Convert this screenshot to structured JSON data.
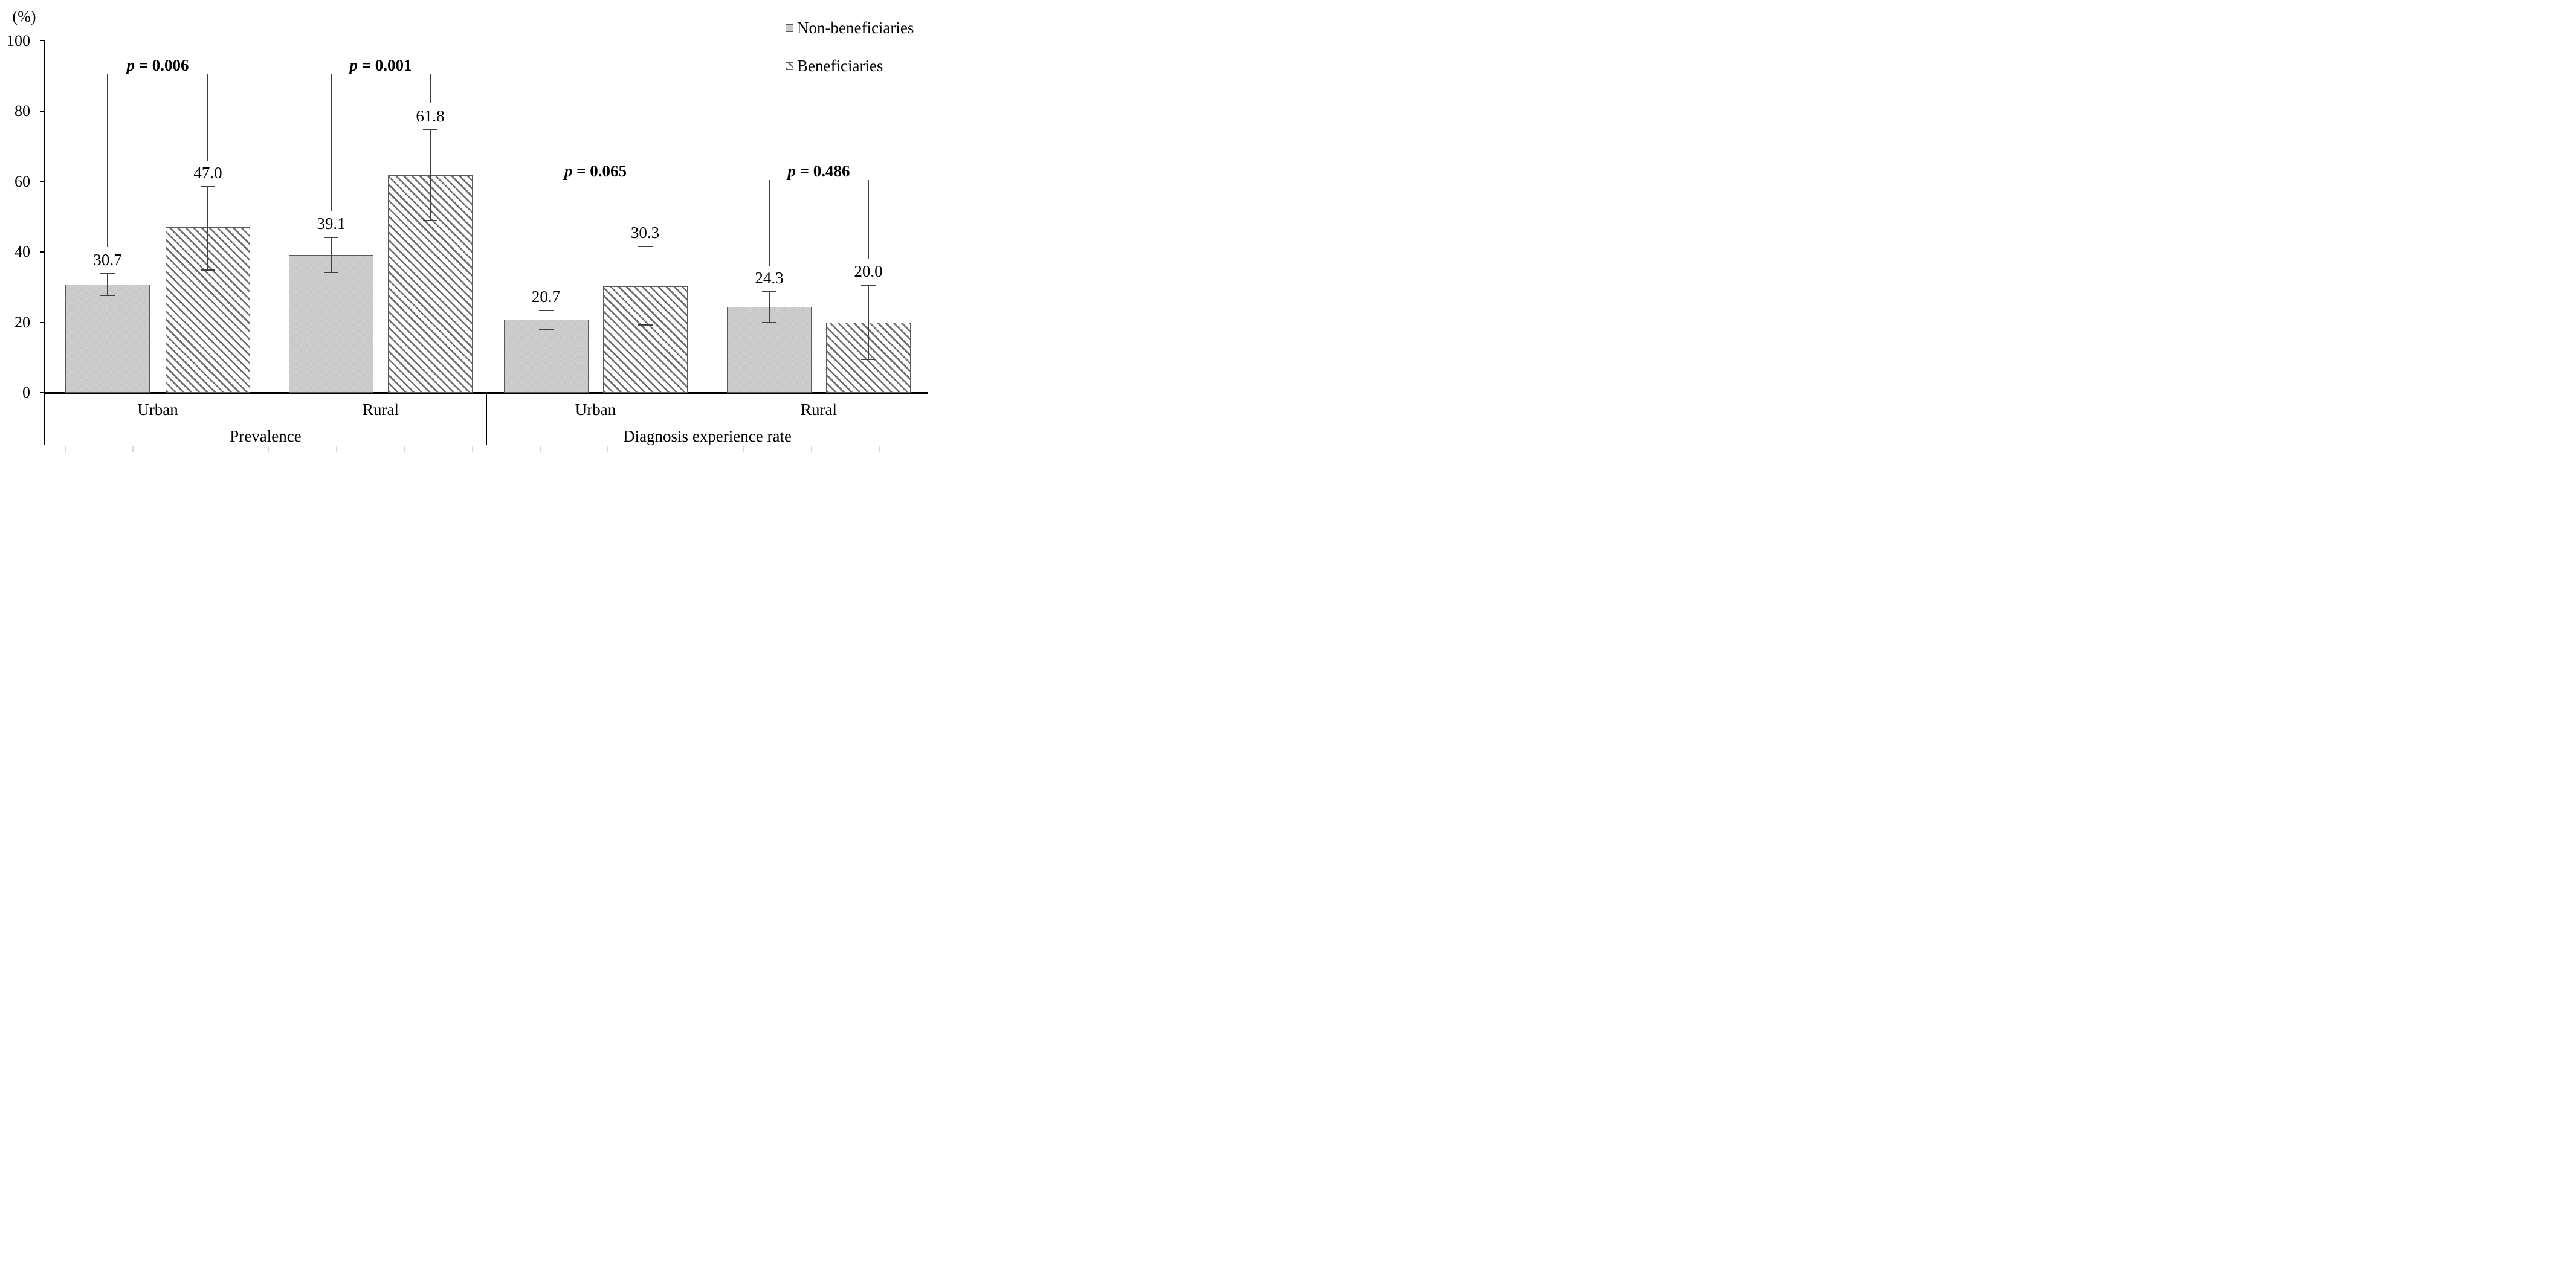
{
  "y_axis": {
    "unit_label": "(%)",
    "ticks": [
      0,
      20,
      40,
      60,
      80,
      100
    ]
  },
  "legend": {
    "items": [
      {
        "label": "Non-beneficiaries",
        "fill": "gray-textured",
        "marker": "gray-swatch-icon"
      },
      {
        "label": "Beneficiaries",
        "fill": "diagonal-hatch",
        "marker": "hatch-swatch-icon"
      }
    ]
  },
  "chart_data": {
    "type": "bar",
    "title": "",
    "xlabel": "",
    "ylabel": "(%)",
    "ylim": [
      0,
      100
    ],
    "yticks": [
      0,
      20,
      40,
      60,
      80,
      100
    ],
    "grid": false,
    "legend_position": "top-right",
    "series_names": [
      "Non-beneficiaries",
      "Beneficiaries"
    ],
    "groups": [
      {
        "label": "Prevalence",
        "categories": [
          {
            "label": "Urban",
            "p_value_text": "p = 0.006",
            "p_value": 0.006,
            "bars": [
              {
                "series": "Non-beneficiaries",
                "value": 30.7,
                "value_label": "30.7",
                "error_low": 27.7,
                "error_high": 33.8
              },
              {
                "series": "Beneficiaries",
                "value": 47.0,
                "value_label": "47.0",
                "error_low": 34.9,
                "error_high": 58.5
              }
            ]
          },
          {
            "label": "Rural",
            "p_value_text": "p = 0.001",
            "p_value": 0.001,
            "bars": [
              {
                "series": "Non-beneficiaries",
                "value": 39.1,
                "value_label": "39.1",
                "error_low": 34.2,
                "error_high": 44.1
              },
              {
                "series": "Beneficiaries",
                "value": 61.8,
                "value_label": "61.8",
                "error_low": 48.9,
                "error_high": 74.7
              }
            ]
          }
        ]
      },
      {
        "label": "Diagnosis experience rate",
        "categories": [
          {
            "label": "Urban",
            "p_value_text": "p = 0.065",
            "p_value": 0.065,
            "bars": [
              {
                "series": "Non-beneficiaries",
                "value": 20.7,
                "value_label": "20.7",
                "error_low": 18.0,
                "error_high": 23.3
              },
              {
                "series": "Beneficiaries",
                "value": 30.3,
                "value_label": "30.3",
                "error_low": 19.3,
                "error_high": 41.5
              }
            ]
          },
          {
            "label": "Rural",
            "p_value_text": "p = 0.486",
            "p_value": 0.486,
            "bars": [
              {
                "series": "Non-beneficiaries",
                "value": 24.3,
                "value_label": "24.3",
                "error_low": 20.0,
                "error_high": 28.6
              },
              {
                "series": "Beneficiaries",
                "value": 20.0,
                "value_label": "20.0",
                "error_low": 9.5,
                "error_high": 30.6
              }
            ]
          }
        ]
      }
    ],
    "colors": {
      "bar_gray_fill": "#c9c9c9",
      "bar_border": "#5a5a5a",
      "hatch_line": "#6e6e6e",
      "error_bar": "#3f3f3f",
      "axis": "#000000",
      "minor_tick": "#d9d9d9",
      "text": "#000000"
    }
  }
}
